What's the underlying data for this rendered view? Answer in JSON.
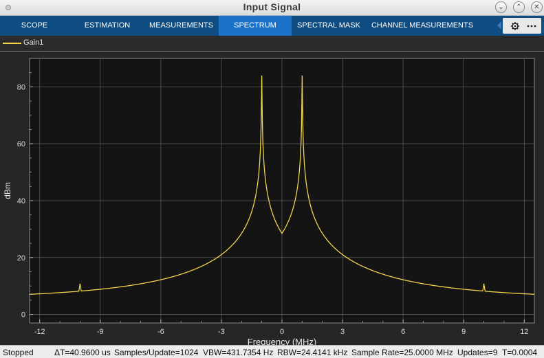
{
  "window": {
    "title": "Input Signal"
  },
  "toolbar": {
    "tabs": [
      "SCOPE",
      "ESTIMATION",
      "MEASUREMENTS",
      "SPECTRUM",
      "SPECTRAL MASK",
      "CHANNEL MEASUREMENTS"
    ],
    "active_tab": "SPECTRUM"
  },
  "legend": {
    "entries": [
      "Gain1"
    ],
    "color": "#f2d44f"
  },
  "statusbar": {
    "state": "Stopped",
    "delta_t": "ΔT=40.9600 us",
    "samples": "Samples/Update=1024",
    "vbw": "VBW=431.7354 Hz",
    "rbw": "RBW=24.4141 kHz",
    "sample_rate": "Sample Rate=25.0000 MHz",
    "updates": "Updates=9",
    "time": "T=0.0004"
  },
  "chart_data": {
    "type": "line",
    "xlabel": "Frequency (MHz)",
    "ylabel": "dBm",
    "xlim": [
      -12.5,
      12.5
    ],
    "ylim": [
      -3,
      90
    ],
    "xticks": [
      -12,
      -9,
      -6,
      -3,
      0,
      3,
      6,
      9,
      12
    ],
    "yticks": [
      0,
      20,
      40,
      60,
      80
    ],
    "grid": true,
    "legend_position": "top-left",
    "series": [
      {
        "name": "Gain1",
        "color": "#f2d44f",
        "carriers_mhz": [
          -1,
          1
        ],
        "peak_dbm": 84,
        "center_dbm": 28.5,
        "edge_dbm": 6.5,
        "spurs": [
          {
            "x": -10,
            "y": 10.8
          },
          {
            "x": -8,
            "y": 9.5
          },
          {
            "x": -7,
            "y": 10.3
          },
          {
            "x": -6,
            "y": 11
          },
          {
            "x": -5,
            "y": 12.2
          },
          {
            "x": -4,
            "y": 16
          },
          {
            "x": -3,
            "y": 17.4
          },
          {
            "x": 3,
            "y": 17.4
          },
          {
            "x": 4,
            "y": 16
          },
          {
            "x": 5,
            "y": 12.2
          },
          {
            "x": 6,
            "y": 11
          },
          {
            "x": 7,
            "y": 10.3
          },
          {
            "x": 8,
            "y": 9.5
          },
          {
            "x": 10,
            "y": 10.8
          }
        ]
      }
    ]
  }
}
